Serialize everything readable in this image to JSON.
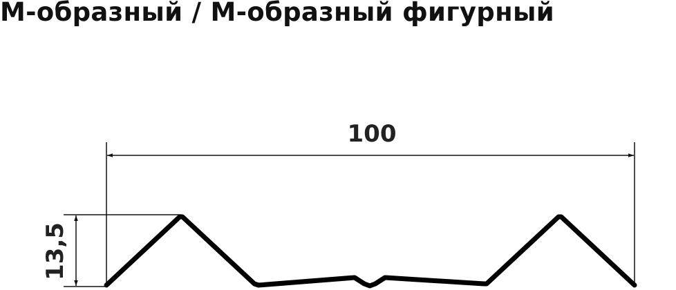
{
  "title": "М-образный / М-образный фигурный",
  "dimensions": {
    "width_label": "100",
    "height_label": "13,5"
  }
}
